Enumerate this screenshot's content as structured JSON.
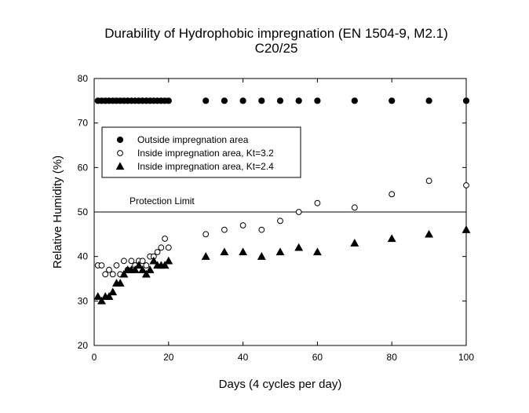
{
  "chart_data": {
    "type": "scatter",
    "title": "Durability of Hydrophobic impregnation (EN 1504-9, M2.1)",
    "subtitle": "C20/25",
    "xlabel": "Days (4 cycles per day)",
    "ylabel": "Relative Humidity (%)",
    "xlim": [
      0,
      100
    ],
    "ylim": [
      20,
      80
    ],
    "xticks": [
      0,
      20,
      40,
      60,
      80,
      100
    ],
    "yticks": [
      20,
      30,
      40,
      50,
      60,
      70,
      80
    ],
    "grid": false,
    "legend_position": "upper-left",
    "series": [
      {
        "name": "Outside impregnation area",
        "marker": "filled-circle",
        "color": "#000000",
        "points": [
          [
            1,
            75
          ],
          [
            2,
            75
          ],
          [
            3,
            75
          ],
          [
            4,
            75
          ],
          [
            5,
            75
          ],
          [
            6,
            75
          ],
          [
            7,
            75
          ],
          [
            8,
            75
          ],
          [
            9,
            75
          ],
          [
            10,
            75
          ],
          [
            11,
            75
          ],
          [
            12,
            75
          ],
          [
            13,
            75
          ],
          [
            14,
            75
          ],
          [
            15,
            75
          ],
          [
            16,
            75
          ],
          [
            17,
            75
          ],
          [
            18,
            75
          ],
          [
            19,
            75
          ],
          [
            20,
            75
          ],
          [
            30,
            75
          ],
          [
            35,
            75
          ],
          [
            40,
            75
          ],
          [
            45,
            75
          ],
          [
            50,
            75
          ],
          [
            55,
            75
          ],
          [
            60,
            75
          ],
          [
            70,
            75
          ],
          [
            80,
            75
          ],
          [
            90,
            75
          ],
          [
            100,
            75
          ]
        ]
      },
      {
        "name": "Inside impregnation area, Kt=3.2",
        "marker": "open-circle",
        "color": "#000000",
        "points": [
          [
            1,
            38
          ],
          [
            2,
            38
          ],
          [
            3,
            36
          ],
          [
            4,
            37
          ],
          [
            5,
            36
          ],
          [
            6,
            38
          ],
          [
            7,
            36
          ],
          [
            8,
            39
          ],
          [
            9,
            37
          ],
          [
            10,
            39
          ],
          [
            11,
            38
          ],
          [
            12,
            39
          ],
          [
            13,
            39
          ],
          [
            14,
            38
          ],
          [
            15,
            40
          ],
          [
            16,
            40
          ],
          [
            17,
            41
          ],
          [
            18,
            42
          ],
          [
            19,
            44
          ],
          [
            20,
            42
          ],
          [
            30,
            45
          ],
          [
            35,
            46
          ],
          [
            40,
            47
          ],
          [
            45,
            46
          ],
          [
            50,
            48
          ],
          [
            55,
            50
          ],
          [
            60,
            52
          ],
          [
            70,
            51
          ],
          [
            80,
            54
          ],
          [
            90,
            57
          ],
          [
            100,
            56
          ]
        ]
      },
      {
        "name": "Inside impregnation area, Kt=2.4",
        "marker": "filled-triangle",
        "color": "#000000",
        "points": [
          [
            1,
            31
          ],
          [
            2,
            30
          ],
          [
            3,
            31
          ],
          [
            4,
            31
          ],
          [
            5,
            32
          ],
          [
            6,
            34
          ],
          [
            7,
            34
          ],
          [
            8,
            36
          ],
          [
            9,
            37
          ],
          [
            10,
            37
          ],
          [
            11,
            37
          ],
          [
            12,
            38
          ],
          [
            13,
            37
          ],
          [
            14,
            36
          ],
          [
            15,
            37
          ],
          [
            16,
            39
          ],
          [
            17,
            38
          ],
          [
            18,
            38
          ],
          [
            19,
            38
          ],
          [
            20,
            39
          ],
          [
            30,
            40
          ],
          [
            35,
            41
          ],
          [
            40,
            41
          ],
          [
            45,
            40
          ],
          [
            50,
            41
          ],
          [
            55,
            42
          ],
          [
            60,
            41
          ],
          [
            70,
            43
          ],
          [
            80,
            44
          ],
          [
            90,
            45
          ],
          [
            100,
            46
          ]
        ]
      }
    ],
    "annotations": [
      {
        "type": "hline",
        "y": 50,
        "x_range": [
          0,
          100
        ],
        "color": "#000000",
        "label": "Protection Limit"
      }
    ]
  }
}
